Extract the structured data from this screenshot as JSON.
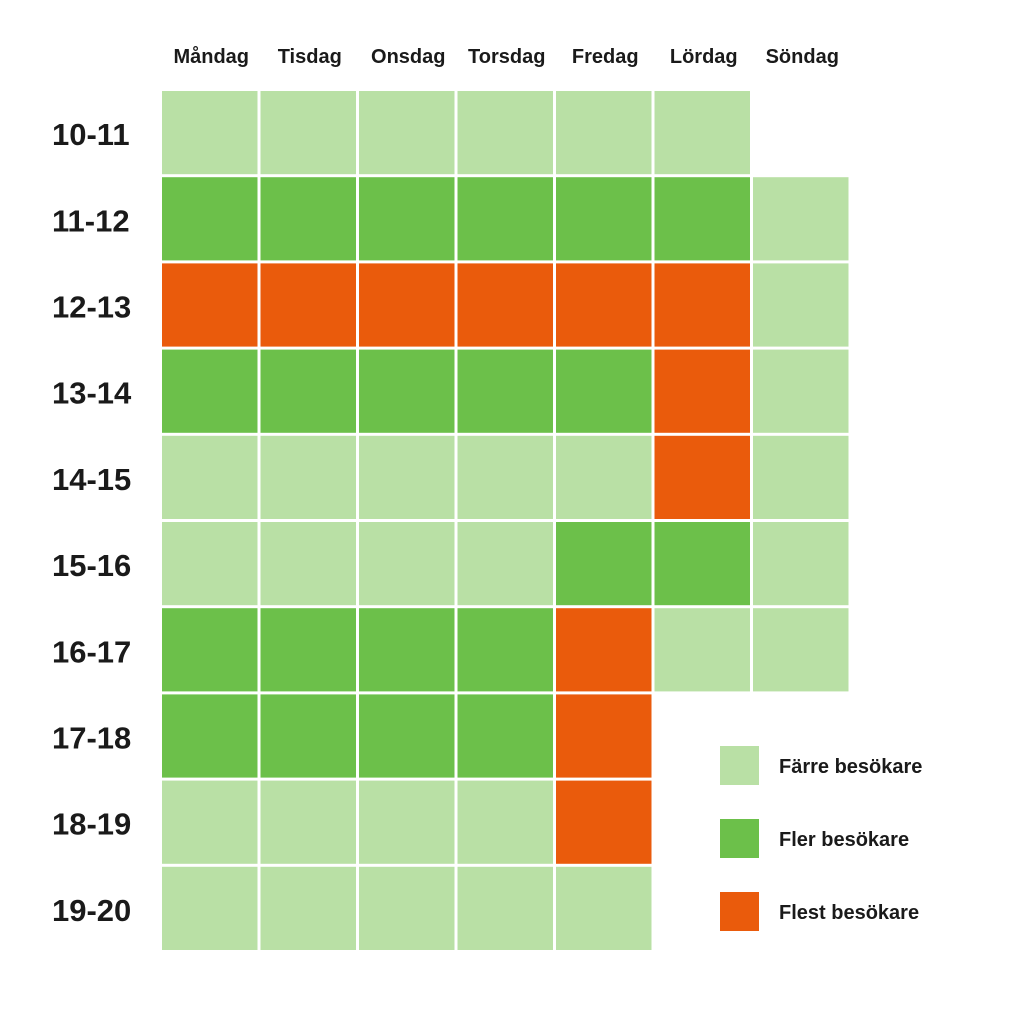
{
  "chart_data": {
    "type": "heatmap",
    "days": [
      "Måndag",
      "Tisdag",
      "Onsdag",
      "Torsdag",
      "Fredag",
      "Lördag",
      "Söndag"
    ],
    "hours": [
      "10-11",
      "11-12",
      "12-13",
      "13-14",
      "14-15",
      "15-16",
      "16-17",
      "17-18",
      "18-19",
      "19-20"
    ],
    "levels": [
      {
        "key": 1,
        "label": "Färre besökare",
        "color": "#b9e0a5"
      },
      {
        "key": 2,
        "label": "Fler besökare",
        "color": "#6cc04a"
      },
      {
        "key": 3,
        "label": "Flest besökare",
        "color": "#ea5b0c"
      }
    ],
    "values": [
      [
        1,
        1,
        1,
        1,
        1,
        1,
        null
      ],
      [
        2,
        2,
        2,
        2,
        2,
        2,
        1
      ],
      [
        3,
        3,
        3,
        3,
        3,
        3,
        1
      ],
      [
        2,
        2,
        2,
        2,
        2,
        3,
        1
      ],
      [
        1,
        1,
        1,
        1,
        1,
        3,
        1
      ],
      [
        1,
        1,
        1,
        1,
        2,
        2,
        1
      ],
      [
        2,
        2,
        2,
        2,
        3,
        1,
        1
      ],
      [
        2,
        2,
        2,
        2,
        3,
        null,
        null
      ],
      [
        1,
        1,
        1,
        1,
        3,
        null,
        null
      ],
      [
        1,
        1,
        1,
        1,
        1,
        null,
        null
      ]
    ],
    "legend_position": "bottom-right"
  }
}
